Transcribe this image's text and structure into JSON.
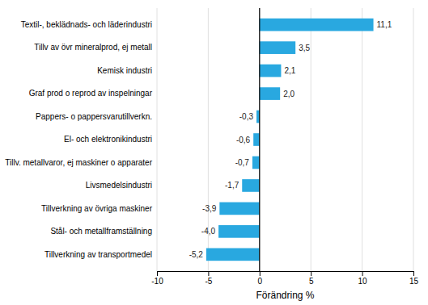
{
  "chart_data": {
    "type": "bar",
    "orientation": "horizontal",
    "categories": [
      "Tillverkning av transportmedel",
      "Stål- och metallframställning",
      "Tillverkning av övriga maskiner",
      "Livsmedelsindustri",
      "Tillv. metallvaror, ej maskiner o apparater",
      "El- och elektronikindustri",
      "Pappers- o pappersvarutillverkn.",
      "Graf prod o reprod av inspelningar",
      "Kemisk industri",
      "Tillv av övr mineralprod, ej metall",
      "Textil-, beklädnads- och läderindustri"
    ],
    "values": [
      -5.2,
      -4.0,
      -3.9,
      -1.7,
      -0.7,
      -0.6,
      -0.3,
      2.0,
      2.1,
      3.5,
      11.1
    ],
    "value_labels": [
      "-5,2",
      "-4,0",
      "-3,9",
      "-1,7",
      "-0,7",
      "-0,6",
      "-0,3",
      "2,0",
      "2,1",
      "3,5",
      "11,1"
    ],
    "data_labels": true,
    "color": "#29a8e0",
    "xlabel": "Förändring %",
    "xlim": [
      -10,
      15
    ],
    "xticks": [
      -10,
      -5,
      0,
      5,
      10,
      15
    ],
    "grid": true
  }
}
